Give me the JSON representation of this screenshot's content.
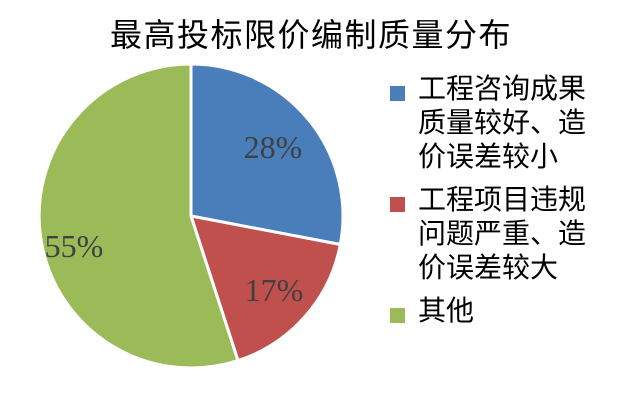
{
  "chart_data": {
    "type": "pie",
    "title": "最高投标限价编制质量分布",
    "categories": [
      "工程咨询成果质量较好、造价误差较小",
      "工程项目违规问题严重、造价误差较大",
      "其他"
    ],
    "values": [
      28,
      17,
      55
    ],
    "data_labels": [
      "28%",
      "17%",
      "55%"
    ],
    "colors": [
      "#4A7EBB",
      "#C0504D",
      "#9BBB59"
    ],
    "start_angle": 0,
    "direction": "clockwise",
    "legend_position": "right",
    "title_color": "#000000",
    "data_label_color": "#404040",
    "slice_border_color": "#FFFFFF",
    "background": "#FFFFFF"
  }
}
